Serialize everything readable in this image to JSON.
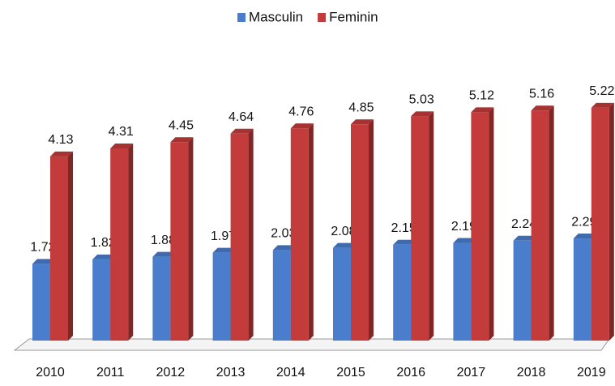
{
  "chart_data": {
    "type": "bar3d",
    "categories": [
      "2010",
      "2011",
      "2012",
      "2013",
      "2014",
      "2015",
      "2016",
      "2017",
      "2018",
      "2019"
    ],
    "series": [
      {
        "name": "Masculin",
        "color": "#4a7dcc",
        "values": [
          1.72,
          1.82,
          1.88,
          1.97,
          2.03,
          2.08,
          2.15,
          2.19,
          2.24,
          2.29
        ]
      },
      {
        "name": "Feminin",
        "color": "#c43b3b",
        "values": [
          4.13,
          4.31,
          4.45,
          4.64,
          4.76,
          4.85,
          5.03,
          5.12,
          5.16,
          5.22
        ]
      }
    ],
    "legend": "top"
  }
}
